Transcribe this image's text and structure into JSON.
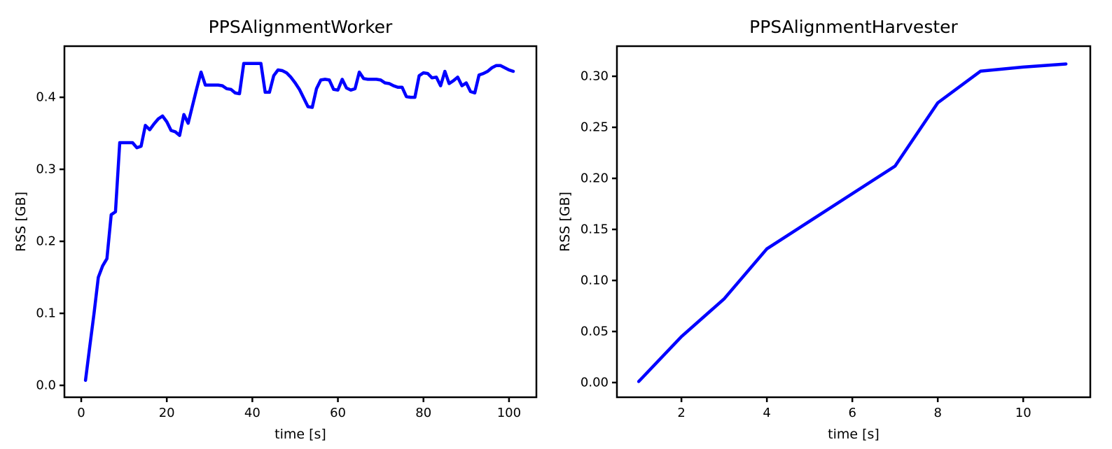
{
  "figure": {
    "background": "#ffffff",
    "text_color": "#000000"
  },
  "chart_data": [
    {
      "type": "line",
      "title": "PPSAlignmentWorker",
      "xlabel": "time [s]",
      "ylabel": "RSS [GB]",
      "line_color": "#0000ff",
      "grid": false,
      "legend": null,
      "xlim": [
        -3.93,
        106.4
      ],
      "ylim": [
        -0.0165,
        0.471
      ],
      "x_ticks": [
        "0",
        "20",
        "40",
        "60",
        "80",
        "100"
      ],
      "y_ticks": [
        "0.0",
        "0.1",
        "0.2",
        "0.3",
        "0.4"
      ],
      "x": [
        1,
        2,
        3,
        4,
        5,
        6,
        7,
        8,
        9,
        10,
        11,
        12,
        13,
        14,
        15,
        16,
        17,
        18,
        19,
        20,
        21,
        22,
        23,
        24,
        25,
        26,
        27,
        28,
        29,
        30,
        31,
        32,
        33,
        34,
        35,
        36,
        37,
        38,
        39,
        40,
        41,
        42,
        43,
        44,
        45,
        46,
        47,
        48,
        49,
        50,
        51,
        52,
        53,
        54,
        55,
        56,
        57,
        58,
        59,
        60,
        61,
        62,
        63,
        64,
        65,
        66,
        67,
        68,
        69,
        70,
        71,
        72,
        73,
        74,
        75,
        76,
        77,
        78,
        79,
        80,
        81,
        82,
        83,
        84,
        85,
        86,
        87,
        88,
        89,
        90,
        91,
        92,
        93,
        94,
        95,
        96,
        97,
        98,
        99,
        100,
        101
      ],
      "y": [
        0.007,
        0.054,
        0.1,
        0.15,
        0.166,
        0.176,
        0.237,
        0.241,
        0.337,
        0.337,
        0.337,
        0.337,
        0.33,
        0.332,
        0.361,
        0.355,
        0.363,
        0.37,
        0.374,
        0.366,
        0.354,
        0.352,
        0.347,
        0.376,
        0.364,
        0.388,
        0.412,
        0.435,
        0.417,
        0.417,
        0.417,
        0.417,
        0.416,
        0.412,
        0.411,
        0.406,
        0.405,
        0.447,
        0.447,
        0.447,
        0.447,
        0.447,
        0.407,
        0.407,
        0.43,
        0.438,
        0.437,
        0.434,
        0.428,
        0.42,
        0.411,
        0.399,
        0.387,
        0.386,
        0.412,
        0.424,
        0.425,
        0.424,
        0.411,
        0.41,
        0.425,
        0.413,
        0.41,
        0.412,
        0.435,
        0.426,
        0.425,
        0.425,
        0.425,
        0.424,
        0.42,
        0.419,
        0.416,
        0.414,
        0.414,
        0.401,
        0.4,
        0.4,
        0.43,
        0.434,
        0.433,
        0.427,
        0.428,
        0.416,
        0.436,
        0.419,
        0.423,
        0.428,
        0.416,
        0.42,
        0.408,
        0.406,
        0.431,
        0.433,
        0.436,
        0.441,
        0.444,
        0.444,
        0.441,
        0.438,
        0.436
      ]
    },
    {
      "type": "line",
      "title": "PPSAlignmentHarvester",
      "xlabel": "time [s]",
      "ylabel": "RSS [GB]",
      "line_color": "#0000ff",
      "grid": false,
      "legend": null,
      "xlim": [
        0.49,
        11.57
      ],
      "ylim": [
        -0.0144,
        0.3295
      ],
      "x_ticks": [
        "2",
        "4",
        "6",
        "8",
        "10"
      ],
      "y_ticks": [
        "0.00",
        "0.05",
        "0.10",
        "0.15",
        "0.20",
        "0.25",
        "0.30"
      ],
      "x": [
        1,
        2,
        3,
        4,
        5,
        6,
        7,
        8,
        9,
        10,
        11
      ],
      "y": [
        0.001,
        0.045,
        0.082,
        0.131,
        0.158,
        0.185,
        0.212,
        0.274,
        0.305,
        0.309,
        0.312
      ]
    }
  ]
}
